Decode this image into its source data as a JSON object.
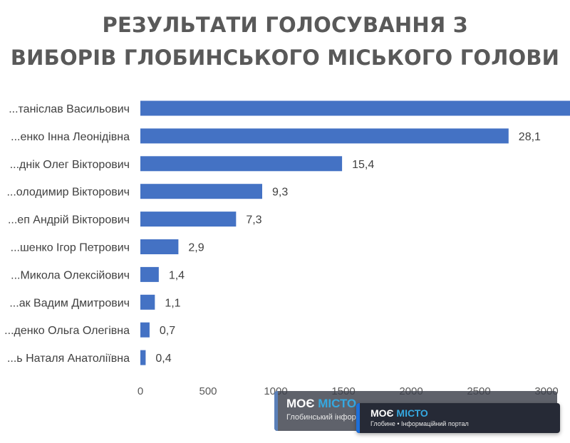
{
  "chart_data": {
    "type": "bar",
    "orientation": "horizontal",
    "title_lines": [
      "РЕЗУЛЬТАТИ ГОЛОСУВАННЯ З",
      "ВИБОРІВ ГЛОБИНСЬКОГО МІСЬКОГО ГОЛОВИ"
    ],
    "categories": [
      "...танiслав Васильович",
      "...енко Інна Леонідівна",
      "...днік Олег Вікторович",
      "...олодимир Вікторович",
      "...еп Андрій Вікторович",
      "...шенко Ігор Петрович",
      "...Микола Олексійович",
      "...ак Вадим Дмитрович",
      "...денко Ольга Олегівна",
      "...ь Наталя Анатоліївна"
    ],
    "values": [
      3400,
      2720,
      1490,
      900,
      707,
      281,
      136,
      107,
      68,
      39
    ],
    "data_labels": [
      "",
      "28,1",
      "15,4",
      "9,3",
      "7,3",
      "2,9",
      "1,4",
      "1,1",
      "0,7",
      "0,4"
    ],
    "x_ticks": [
      "0",
      "500",
      "1000",
      "1500",
      "2000",
      "2500",
      "3000"
    ],
    "xlim": [
      0,
      3400
    ],
    "bar_color": "#4472c4",
    "grid": false,
    "legend": "none"
  },
  "watermarks": [
    {
      "brand_a": "МОЄ",
      "brand_b": "МІСТО",
      "subtitle": "Глобинський інфор"
    },
    {
      "brand_a": "МОЄ",
      "brand_b": "МІСТО",
      "subtitle": "Глобине • Інформаційний портал"
    }
  ],
  "colors": {
    "bar": "#4472c4",
    "title": "#595959",
    "watermark_bg": "#2b2f3a",
    "watermark_accent": "#35a8e0"
  }
}
